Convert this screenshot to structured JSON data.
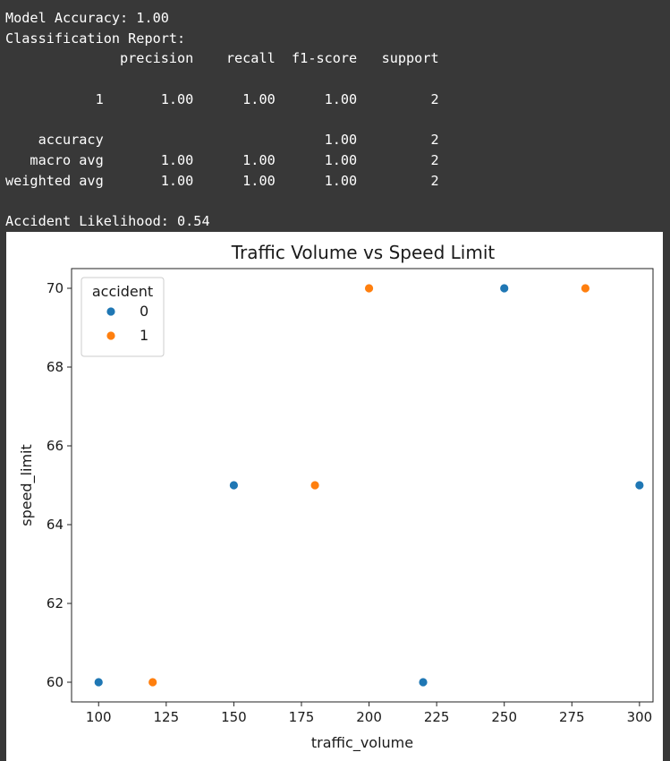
{
  "console": {
    "lines": [
      "Model Accuracy: 1.00",
      "Classification Report:",
      "              precision    recall  f1-score   support",
      "",
      "           1       1.00      1.00      1.00         2",
      "",
      "    accuracy                           1.00         2",
      "   macro avg       1.00      1.00      1.00         2",
      "weighted avg       1.00      1.00      1.00         2",
      "",
      "Accident Likelihood: 0.54"
    ]
  },
  "chart_data": {
    "type": "scatter",
    "title": "Traffic Volume vs Speed Limit",
    "xlabel": "traffic_volume",
    "ylabel": "speed_limit",
    "xlim": [
      90,
      305
    ],
    "ylim": [
      59.5,
      70.5
    ],
    "xticks": [
      100,
      125,
      150,
      175,
      200,
      225,
      250,
      275,
      300
    ],
    "yticks": [
      60,
      62,
      64,
      66,
      68,
      70
    ],
    "legend": {
      "title": "accident",
      "placement": "top-left",
      "entries": [
        {
          "label": "0",
          "color": "#1f77b4"
        },
        {
          "label": "1",
          "color": "#ff7f0e"
        }
      ]
    },
    "series": [
      {
        "name": "0",
        "color": "#1f77b4",
        "points": [
          {
            "x": 100,
            "y": 60
          },
          {
            "x": 150,
            "y": 65
          },
          {
            "x": 220,
            "y": 60
          },
          {
            "x": 250,
            "y": 70
          },
          {
            "x": 300,
            "y": 65
          }
        ]
      },
      {
        "name": "1",
        "color": "#ff7f0e",
        "points": [
          {
            "x": 120,
            "y": 60
          },
          {
            "x": 180,
            "y": 65
          },
          {
            "x": 200,
            "y": 70
          },
          {
            "x": 280,
            "y": 70
          }
        ]
      }
    ]
  }
}
